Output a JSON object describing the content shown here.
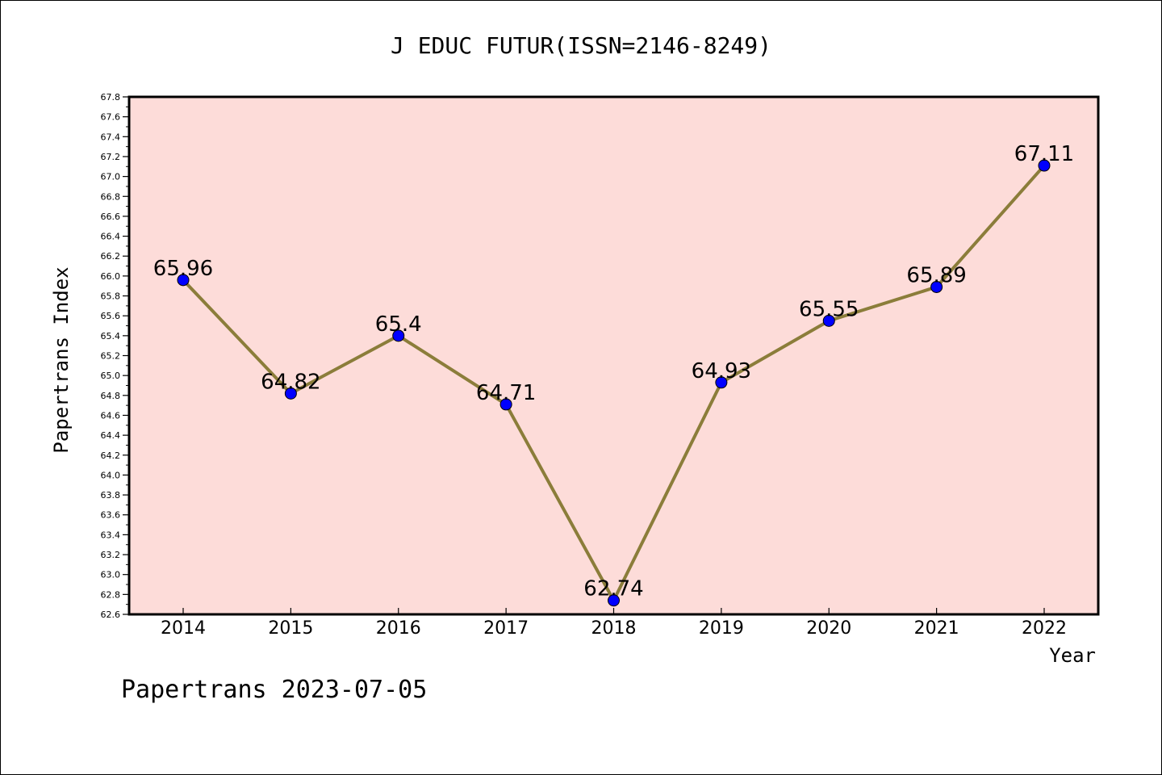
{
  "chart_data": {
    "type": "line",
    "title": "J EDUC FUTUR(ISSN=2146-8249)",
    "xlabel": "Year",
    "ylabel": "Papertrans Index",
    "categories": [
      "2014",
      "2015",
      "2016",
      "2017",
      "2018",
      "2019",
      "2020",
      "2021",
      "2022"
    ],
    "series": [
      {
        "values": [
          65.96,
          64.82,
          65.4,
          64.71,
          62.74,
          64.93,
          65.55,
          65.89,
          67.11
        ]
      }
    ],
    "data_labels": [
      "65.96",
      "64.82",
      "65.4",
      "64.71",
      "62.74",
      "64.93",
      "65.55",
      "65.89",
      "67.11"
    ],
    "ylim": [
      62.6,
      67.8
    ],
    "ytick_labels": [
      "62.6",
      "62.8",
      "63.0",
      "63.2",
      "63.4",
      "63.6",
      "63.8",
      "64.0",
      "64.2",
      "64.4",
      "64.6",
      "64.8",
      "65.0",
      "65.2",
      "65.4",
      "65.6",
      "65.8",
      "66.0",
      "66.2",
      "66.4",
      "66.6",
      "66.8",
      "67.0",
      "67.2",
      "67.4",
      "67.6",
      "67.8"
    ],
    "grid": false,
    "colors": {
      "plot_background": "#fddcd9",
      "line": "#8b7d3a",
      "marker": "#0000ff",
      "axis": "#000000"
    },
    "footer": "Papertrans 2023-07-05"
  }
}
